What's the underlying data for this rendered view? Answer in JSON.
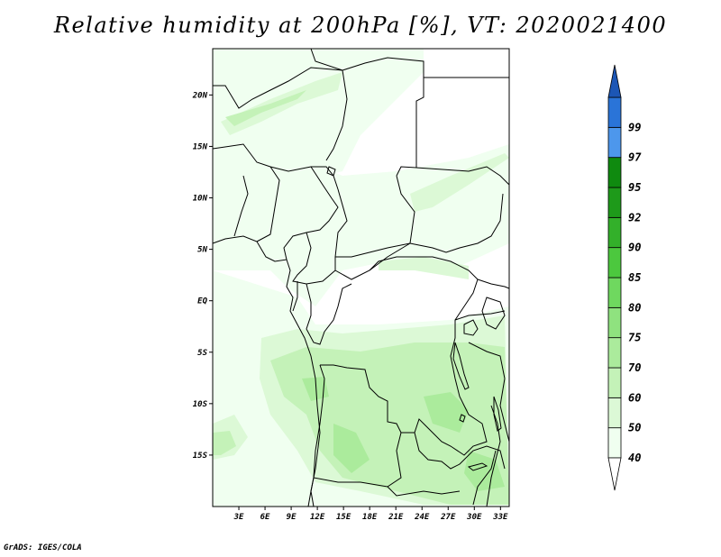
{
  "title": "Relative humidity at 200hPa [%], VT: 2020021400",
  "footer": "GrADS: IGES/COLA",
  "map": {
    "variable": "Relative humidity",
    "level": "200hPa",
    "units": "%",
    "valid_time": "2020021400",
    "lon_range": [
      0,
      34
    ],
    "lat_range": [
      -20,
      24.5
    ],
    "lat_ticks": [
      {
        "value": 20,
        "label": "20N"
      },
      {
        "value": 15,
        "label": "15N"
      },
      {
        "value": 10,
        "label": "10N"
      },
      {
        "value": 5,
        "label": "5N"
      },
      {
        "value": 0,
        "label": "EQ"
      },
      {
        "value": -5,
        "label": "5S"
      },
      {
        "value": -10,
        "label": "10S"
      },
      {
        "value": -15,
        "label": "15S"
      }
    ],
    "lon_ticks": [
      {
        "value": 3,
        "label": "3E"
      },
      {
        "value": 6,
        "label": "6E"
      },
      {
        "value": 9,
        "label": "9E"
      },
      {
        "value": 12,
        "label": "12E"
      },
      {
        "value": 15,
        "label": "15E"
      },
      {
        "value": 18,
        "label": "18E"
      },
      {
        "value": 21,
        "label": "21E"
      },
      {
        "value": 24,
        "label": "24E"
      },
      {
        "value": 27,
        "label": "27E"
      },
      {
        "value": 30,
        "label": "30E"
      },
      {
        "value": 33,
        "label": "33E"
      }
    ]
  },
  "colorbar": {
    "levels": [
      {
        "label": "40",
        "color": "#f0fff0"
      },
      {
        "label": "50",
        "color": "#dcf9d6"
      },
      {
        "label": "60",
        "color": "#c4f2b8"
      },
      {
        "label": "70",
        "color": "#abeb9c"
      },
      {
        "label": "75",
        "color": "#8fe27f"
      },
      {
        "label": "80",
        "color": "#6fd85f"
      },
      {
        "label": "85",
        "color": "#4cc83e"
      },
      {
        "label": "90",
        "color": "#33b02a"
      },
      {
        "label": "92",
        "color": "#1e9a1a"
      },
      {
        "label": "95",
        "color": "#0f8a0f"
      },
      {
        "label": "97",
        "color": "#4d97ec"
      },
      {
        "label": "99",
        "color": "#2a74d8"
      }
    ],
    "top_cap_color": "#1c56b5",
    "bottom_cap_color": "#ffffff"
  },
  "humidity_fields": [
    {
      "level": "40",
      "color": "#f0fff0"
    },
    {
      "level": "50",
      "color": "#dcf9d6"
    },
    {
      "level": "60",
      "color": "#c4f2b8"
    },
    {
      "level": "70",
      "color": "#abeb9c"
    }
  ]
}
